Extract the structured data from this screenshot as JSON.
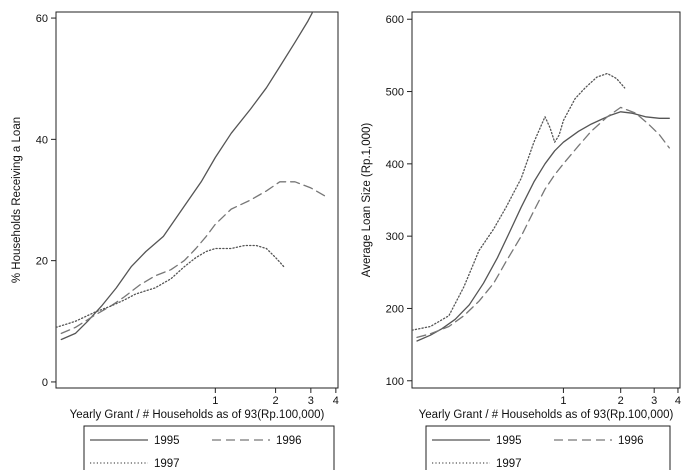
{
  "chart_data": [
    {
      "type": "line",
      "xlabel": "Yearly Grant / # Households as of 93(Rp.100,000)",
      "ylabel": "% Households Receiving a Loan",
      "xscale": "log",
      "xlim": [
        0.16,
        4.1
      ],
      "ylim": [
        -1,
        61
      ],
      "xticks": [
        1,
        2,
        3,
        4
      ],
      "yticks": [
        0,
        20,
        40,
        60
      ],
      "grid": false,
      "legend": "bottom",
      "series": [
        {
          "name": "1995",
          "style": "solid",
          "color": "#555555",
          "x": [
            0.17,
            0.2,
            0.23,
            0.27,
            0.32,
            0.38,
            0.45,
            0.55,
            0.7,
            0.85,
            1.0,
            1.2,
            1.5,
            1.8,
            2.1,
            2.5,
            2.9,
            3.3,
            3.6
          ],
          "y": [
            7,
            8,
            10,
            12.5,
            15.5,
            19,
            21.5,
            24,
            29,
            33,
            37,
            41,
            45,
            48.5,
            52,
            56,
            59.5,
            63,
            65.5
          ]
        },
        {
          "name": "1996",
          "style": "dashed",
          "color": "#777777",
          "x": [
            0.17,
            0.2,
            0.25,
            0.3,
            0.35,
            0.42,
            0.5,
            0.6,
            0.7,
            0.8,
            0.9,
            1.0,
            1.2,
            1.5,
            1.8,
            2.1,
            2.5,
            3.0,
            3.6
          ],
          "y": [
            8,
            9,
            11,
            12.5,
            14,
            16,
            17.5,
            18.5,
            20,
            22,
            24,
            26,
            28.5,
            30,
            31.5,
            33,
            33,
            32,
            30.5
          ]
        },
        {
          "name": "1997",
          "style": "dotted",
          "color": "#555555",
          "x": [
            0.16,
            0.2,
            0.25,
            0.3,
            0.35,
            0.4,
            0.5,
            0.6,
            0.7,
            0.8,
            0.9,
            1.0,
            1.2,
            1.4,
            1.6,
            1.8,
            2.0,
            2.2
          ],
          "y": [
            9,
            10,
            11.5,
            12.5,
            13.5,
            14.5,
            15.5,
            17,
            19,
            20.5,
            21.5,
            22,
            22,
            22.5,
            22.5,
            22,
            20.5,
            19
          ]
        }
      ]
    },
    {
      "type": "line",
      "xlabel": "Yearly Grant / # Households as of 93(Rp.100,000)",
      "ylabel": "Average Loan Size (Rp.1,000)",
      "xscale": "log",
      "xlim": [
        0.16,
        4.1
      ],
      "ylim": [
        90,
        610
      ],
      "xticks": [
        1,
        2,
        3,
        4
      ],
      "yticks": [
        100,
        200,
        300,
        400,
        500,
        600
      ],
      "grid": false,
      "legend": "bottom",
      "series": [
        {
          "name": "1995",
          "style": "solid",
          "color": "#555555",
          "x": [
            0.17,
            0.2,
            0.23,
            0.27,
            0.32,
            0.38,
            0.45,
            0.52,
            0.6,
            0.7,
            0.8,
            0.9,
            1.0,
            1.2,
            1.4,
            1.6,
            1.8,
            2.0,
            2.3,
            2.7,
            3.2,
            3.6
          ],
          "y": [
            155,
            163,
            172,
            185,
            205,
            235,
            270,
            305,
            340,
            375,
            400,
            418,
            430,
            445,
            455,
            462,
            468,
            472,
            470,
            465,
            463,
            463
          ]
        },
        {
          "name": "1996",
          "style": "dashed",
          "color": "#777777",
          "x": [
            0.17,
            0.2,
            0.25,
            0.3,
            0.36,
            0.43,
            0.5,
            0.6,
            0.7,
            0.8,
            0.9,
            1.0,
            1.2,
            1.4,
            1.7,
            2.0,
            2.4,
            2.8,
            3.2,
            3.6
          ],
          "y": [
            160,
            165,
            175,
            190,
            210,
            235,
            265,
            300,
            335,
            365,
            385,
            400,
            425,
            445,
            465,
            478,
            470,
            455,
            440,
            422
          ]
        },
        {
          "name": "1997",
          "style": "dotted",
          "color": "#555555",
          "x": [
            0.16,
            0.2,
            0.25,
            0.3,
            0.36,
            0.43,
            0.5,
            0.6,
            0.7,
            0.8,
            0.85,
            0.9,
            0.95,
            1.0,
            1.15,
            1.3,
            1.5,
            1.7,
            1.9,
            2.1
          ],
          "y": [
            170,
            175,
            190,
            230,
            280,
            310,
            340,
            380,
            430,
            465,
            450,
            430,
            440,
            460,
            490,
            505,
            520,
            525,
            518,
            505
          ]
        }
      ]
    }
  ]
}
